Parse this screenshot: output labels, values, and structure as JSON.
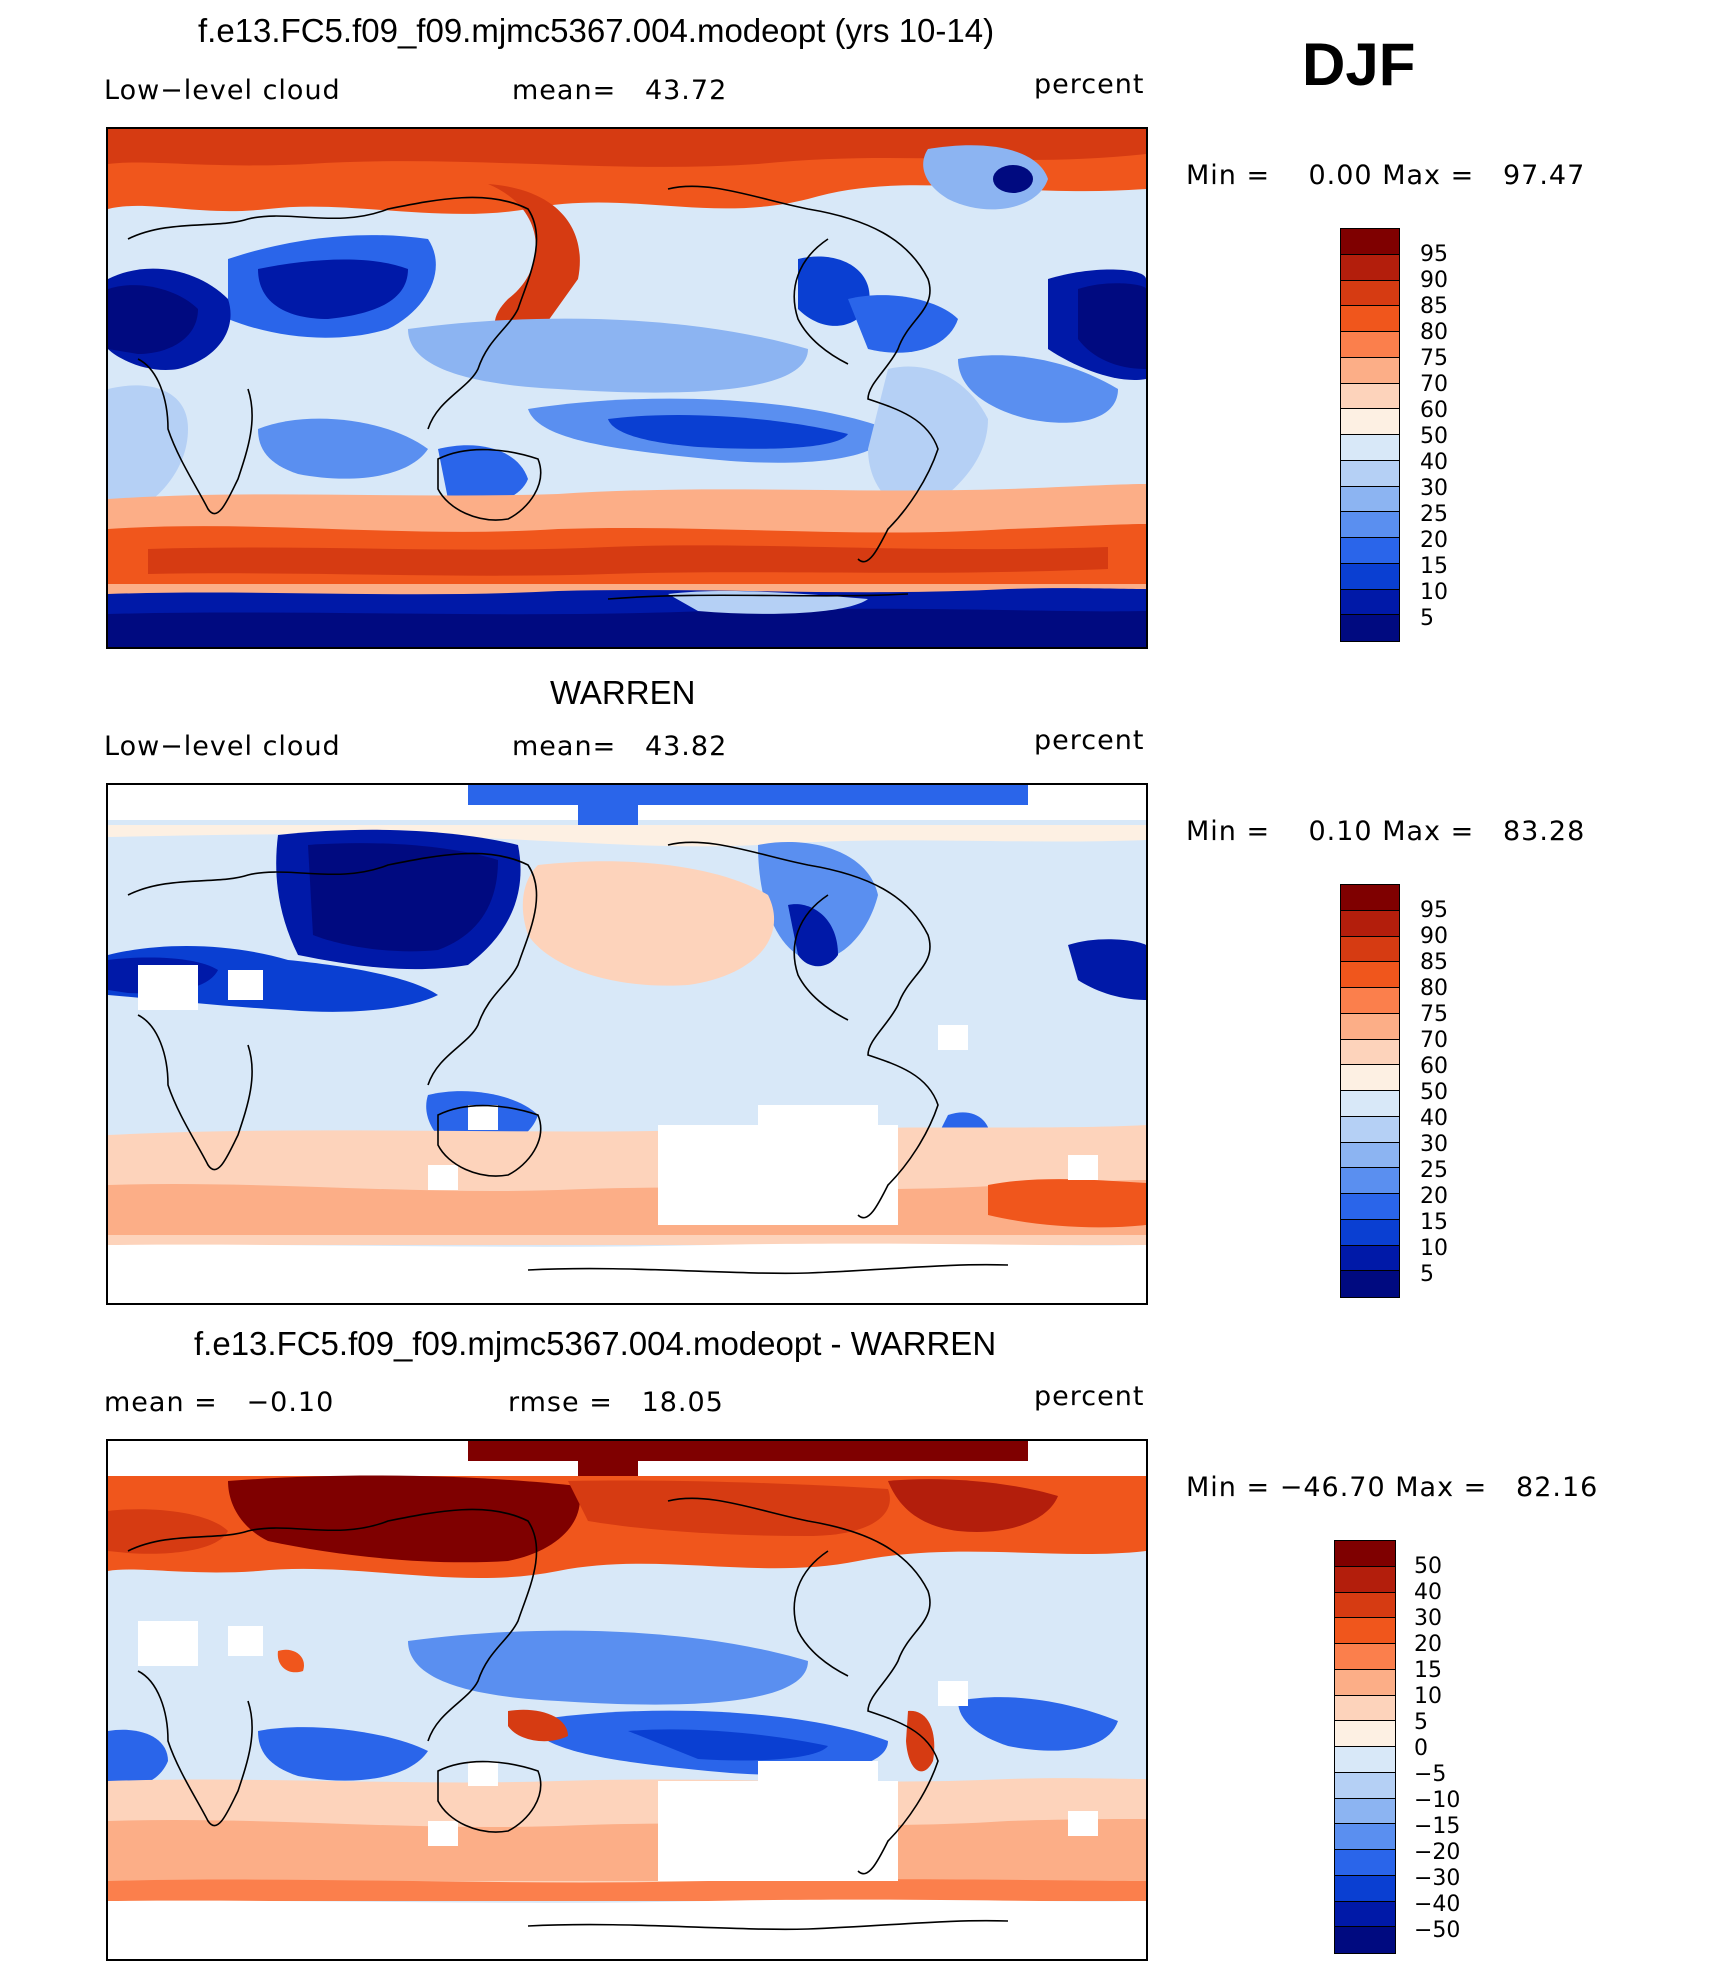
{
  "season": "DJF",
  "units_label": "percent",
  "panels": [
    {
      "title": "f.e13.FC5.f09_f09.mjmc5367.004.modeopt (yrs 10-14)",
      "variable": "Low−level cloud",
      "stat_label": "mean=",
      "stat_value": "43.72",
      "units": "percent",
      "min_label": "Min  =",
      "min_value": "0.00",
      "max_label": "Max  =",
      "max_value": "97.47",
      "colorbar_ticks": [
        "95",
        "90",
        "85",
        "80",
        "75",
        "70",
        "60",
        "50",
        "40",
        "30",
        "25",
        "20",
        "15",
        "10",
        "5"
      ]
    },
    {
      "title": "WARREN",
      "variable": "Low−level cloud",
      "stat_label": "mean=",
      "stat_value": "43.82",
      "units": "percent",
      "min_label": "Min  =",
      "min_value": "0.10",
      "max_label": "Max  =",
      "max_value": "83.28",
      "colorbar_ticks": [
        "95",
        "90",
        "85",
        "80",
        "75",
        "70",
        "60",
        "50",
        "40",
        "30",
        "25",
        "20",
        "15",
        "10",
        "5"
      ]
    },
    {
      "title": "f.e13.FC5.f09_f09.mjmc5367.004.modeopt - WARREN",
      "mean_label": "mean  =",
      "mean_value": "−0.10",
      "rmse_label": "rmse  =",
      "rmse_value": "18.05",
      "units": "percent",
      "min_label": "Min  =",
      "min_value": "−46.70",
      "max_label": "Max  =",
      "max_value": "82.16",
      "colorbar_ticks": [
        "50",
        "40",
        "30",
        "20",
        "15",
        "10",
        "5",
        "0",
        "−5",
        "−10",
        "−15",
        "−20",
        "−30",
        "−40",
        "−50"
      ]
    }
  ],
  "colors": {
    "seq": [
      "#7f0000",
      "#b31e0c",
      "#d63b12",
      "#f0561c",
      "#fb7f4c",
      "#fcae87",
      "#fdd3bb",
      "#fdf0e3",
      "#d8e8f8",
      "#b5d0f5",
      "#8cb4f2",
      "#5a8ff0",
      "#2a65ea",
      "#0a3fd2",
      "#0019a8",
      "#000a80"
    ],
    "diff": [
      "#7f0000",
      "#b31e0c",
      "#d63b12",
      "#f0561c",
      "#fb7f4c",
      "#fcae87",
      "#fdd3bb",
      "#fdf0e3",
      "#d8e8f8",
      "#b5d0f5",
      "#8cb4f2",
      "#5a8ff0",
      "#2a65ea",
      "#0a3fd2",
      "#0019a8",
      "#000a80"
    ]
  }
}
